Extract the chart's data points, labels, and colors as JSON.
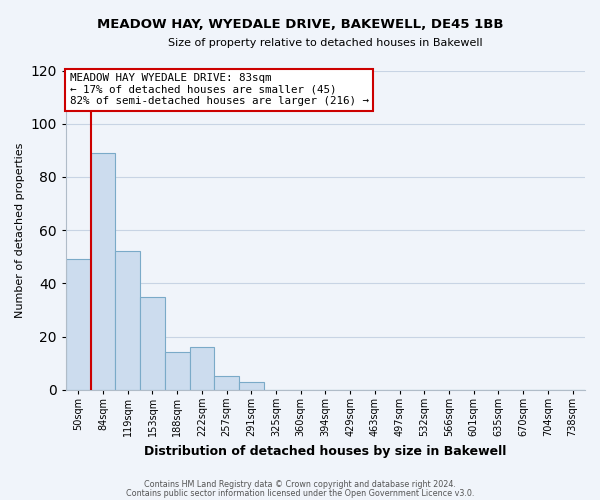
{
  "title": "MEADOW HAY, WYEDALE DRIVE, BAKEWELL, DE45 1BB",
  "subtitle": "Size of property relative to detached houses in Bakewell",
  "xlabel": "Distribution of detached houses by size in Bakewell",
  "ylabel": "Number of detached properties",
  "bin_labels": [
    "50sqm",
    "84sqm",
    "119sqm",
    "153sqm",
    "188sqm",
    "222sqm",
    "257sqm",
    "291sqm",
    "325sqm",
    "360sqm",
    "394sqm",
    "429sqm",
    "463sqm",
    "497sqm",
    "532sqm",
    "566sqm",
    "601sqm",
    "635sqm",
    "670sqm",
    "704sqm",
    "738sqm"
  ],
  "bar_heights": [
    49,
    89,
    52,
    35,
    14,
    16,
    5,
    3,
    0,
    0,
    0,
    0,
    0,
    0,
    0,
    0,
    0,
    0,
    0,
    0,
    0
  ],
  "bar_color": "#ccdcee",
  "bar_edge_color": "#7aaac8",
  "ylim": [
    0,
    120
  ],
  "yticks": [
    0,
    20,
    40,
    60,
    80,
    100,
    120
  ],
  "property_line_x": 0.5,
  "property_line_color": "#cc0000",
  "annotation_title": "MEADOW HAY WYEDALE DRIVE: 83sqm",
  "annotation_line1": "← 17% of detached houses are smaller (45)",
  "annotation_line2": "82% of semi-detached houses are larger (216) →",
  "annotation_box_color": "#ffffff",
  "annotation_box_edge": "#cc0000",
  "footer1": "Contains HM Land Registry data © Crown copyright and database right 2024.",
  "footer2": "Contains public sector information licensed under the Open Government Licence v3.0.",
  "background_color": "#f0f4fa",
  "grid_color": "#c8d4e4",
  "title_fontsize": 9.5,
  "subtitle_fontsize": 8,
  "axis_label_fontsize": 8,
  "tick_fontsize": 7
}
